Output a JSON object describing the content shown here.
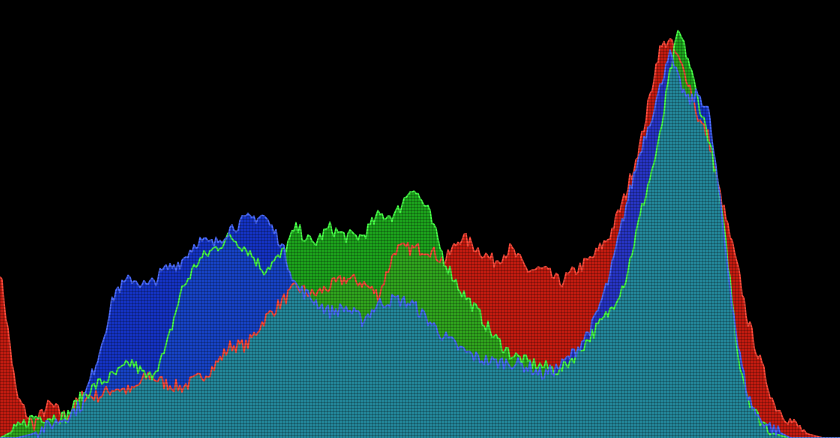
{
  "chart_data": {
    "type": "area",
    "xlim": [
      0,
      255
    ],
    "ylim": [
      0,
      100
    ],
    "grid": false,
    "legend": "none",
    "series": [
      {
        "key": "red",
        "color": "#d81e12",
        "x": [
          0,
          5,
          10,
          15,
          20,
          25,
          30,
          35,
          40,
          45,
          50,
          55,
          60,
          65,
          70,
          75,
          80,
          85,
          90,
          95,
          100,
          105,
          110,
          115,
          120,
          125,
          130,
          135,
          140,
          145,
          150,
          155,
          160,
          165,
          170,
          175,
          180,
          185,
          190,
          195,
          200,
          203,
          206,
          209,
          212,
          215,
          218,
          221,
          224,
          227,
          230,
          235,
          240,
          245,
          250,
          255
        ],
        "y": [
          40,
          10,
          3,
          8,
          5,
          10,
          10,
          12,
          11,
          15,
          13,
          12,
          14,
          17,
          22,
          22,
          28,
          32,
          36,
          34,
          36,
          38,
          37,
          34,
          45,
          45,
          45,
          42,
          48,
          45,
          42,
          45,
          40,
          40,
          37,
          40,
          43,
          48,
          58,
          72,
          92,
          95,
          90,
          85,
          76,
          72,
          60,
          50,
          40,
          28,
          20,
          8,
          4,
          1,
          0,
          0
        ]
      },
      {
        "key": "green",
        "color": "#1fb51f",
        "x": [
          0,
          5,
          10,
          15,
          20,
          25,
          30,
          35,
          40,
          45,
          50,
          55,
          60,
          65,
          70,
          75,
          80,
          85,
          90,
          95,
          100,
          105,
          110,
          115,
          120,
          125,
          130,
          135,
          140,
          145,
          150,
          155,
          160,
          165,
          170,
          175,
          180,
          185,
          190,
          195,
          200,
          203,
          206,
          209,
          212,
          215,
          218,
          221,
          224,
          227,
          230,
          235,
          240,
          245,
          250,
          255
        ],
        "y": [
          0,
          2,
          5,
          5,
          5,
          10,
          13,
          15,
          18,
          14,
          20,
          35,
          42,
          45,
          48,
          45,
          40,
          43,
          50,
          46,
          50,
          48,
          48,
          53,
          53,
          60,
          54,
          42,
          35,
          30,
          24,
          20,
          18,
          17,
          16,
          20,
          25,
          30,
          38,
          55,
          70,
          85,
          97,
          90,
          80,
          72,
          60,
          42,
          20,
          10,
          5,
          1,
          0,
          0,
          0,
          0
        ]
      },
      {
        "key": "blue",
        "color": "#1638d9",
        "x": [
          0,
          5,
          10,
          15,
          20,
          25,
          30,
          35,
          40,
          45,
          50,
          55,
          60,
          65,
          70,
          75,
          80,
          85,
          90,
          95,
          100,
          105,
          110,
          115,
          120,
          125,
          130,
          135,
          140,
          145,
          150,
          155,
          160,
          165,
          170,
          175,
          180,
          185,
          190,
          195,
          200,
          203,
          206,
          209,
          212,
          215,
          218,
          221,
          224,
          227,
          230,
          235,
          240,
          245,
          250,
          255
        ],
        "y": [
          0,
          0,
          1,
          3,
          5,
          8,
          20,
          35,
          38,
          36,
          40,
          42,
          47,
          46,
          50,
          52,
          53,
          47,
          36,
          33,
          30,
          31,
          28,
          32,
          33,
          32,
          28,
          24,
          21,
          19,
          18,
          18,
          17,
          15,
          17,
          21,
          27,
          38,
          55,
          70,
          82,
          92,
          85,
          80,
          82,
          78,
          60,
          40,
          22,
          10,
          5,
          2,
          0,
          0,
          0,
          0
        ]
      }
    ]
  }
}
